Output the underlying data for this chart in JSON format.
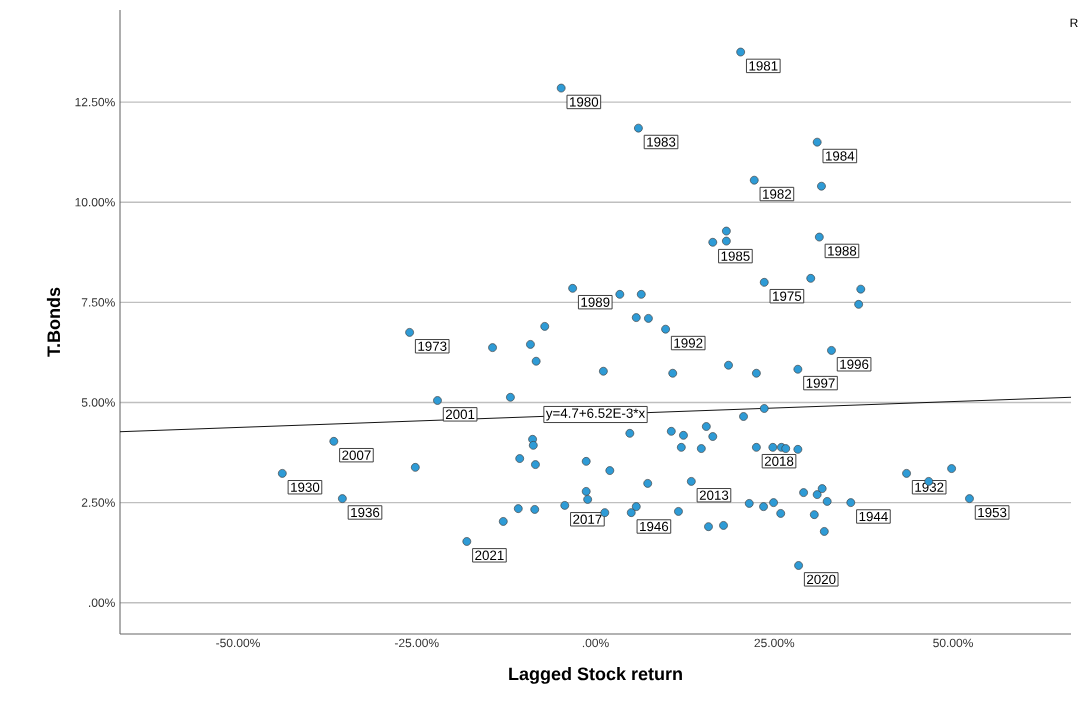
{
  "chart_data": {
    "type": "scatter",
    "xlabel": "Lagged Stock return",
    "ylabel": "T.Bonds",
    "xlim": [
      -66.5,
      66.5
    ],
    "ylim": [
      -0.78,
      14.8
    ],
    "xticks": [
      {
        "value": -50,
        "label": "-50.00%"
      },
      {
        "value": -25,
        "label": "-25.00%"
      },
      {
        "value": 0,
        "label": ".00%"
      },
      {
        "value": 25,
        "label": "25.00%"
      },
      {
        "value": 50,
        "label": "50.00%"
      }
    ],
    "yticks": [
      {
        "value": 0,
        "label": ".00%"
      },
      {
        "value": 2.5,
        "label": "2.50%"
      },
      {
        "value": 5,
        "label": "5.00%"
      },
      {
        "value": 7.5,
        "label": "7.50%"
      },
      {
        "value": 10,
        "label": "10.00%"
      },
      {
        "value": 12.5,
        "label": "12.50%"
      }
    ],
    "grid": "y",
    "series": [
      {
        "color": "#2e9bd6",
        "marker": "circle",
        "x": [
          -4.8,
          20.3,
          6.0,
          22.2,
          18.3,
          18.3,
          16.4,
          23.6,
          -3.2,
          3.4,
          6.4,
          5.7,
          7.4,
          -7.1,
          9.8,
          31.0,
          31.6,
          31.3,
          30.1,
          37.1,
          36.8,
          -14.4,
          -9.1,
          -8.3,
          1.1,
          10.8,
          18.6,
          22.5,
          -11.9,
          -22.1,
          23.6,
          20.7,
          4.8,
          10.6,
          12.3,
          15.5,
          16.4,
          -8.8,
          -8.7,
          12.0,
          14.8,
          22.5,
          -10.6,
          -8.4,
          -1.3,
          2.0,
          7.3,
          13.4,
          -1.3,
          -1.1,
          -10.8,
          -8.5,
          -4.3,
          5.7,
          5.0,
          1.3,
          11.6,
          21.5,
          23.5,
          -12.9,
          -18.0,
          15.8,
          17.9,
          33.0,
          28.3,
          24.8,
          26.0,
          26.6,
          28.3,
          29.1,
          31.0,
          31.7,
          32.4,
          35.7,
          24.9,
          25.9,
          30.6,
          32.0,
          28.4,
          43.5,
          46.6,
          49.8,
          52.3,
          -26.0,
          -36.6,
          -43.8,
          -35.4,
          -25.2
        ],
        "values": [
          12.85,
          13.75,
          11.85,
          10.55,
          9.28,
          9.03,
          9.0,
          8.0,
          7.85,
          7.7,
          7.7,
          7.12,
          7.1,
          6.9,
          6.83,
          11.5,
          10.4,
          9.13,
          8.1,
          7.83,
          7.45,
          6.37,
          6.45,
          6.03,
          5.78,
          5.73,
          5.93,
          5.73,
          5.13,
          5.05,
          4.85,
          4.65,
          4.23,
          4.28,
          4.18,
          4.4,
          4.15,
          4.08,
          3.93,
          3.88,
          3.85,
          3.88,
          3.6,
          3.45,
          3.53,
          3.3,
          2.98,
          3.03,
          2.78,
          2.58,
          2.35,
          2.33,
          2.43,
          2.4,
          2.25,
          2.25,
          2.28,
          2.48,
          2.4,
          2.03,
          1.53,
          1.9,
          1.93,
          6.3,
          5.83,
          3.88,
          3.88,
          3.85,
          3.83,
          2.75,
          2.7,
          2.85,
          2.53,
          2.5,
          2.5,
          2.23,
          2.2,
          1.78,
          0.93,
          3.23,
          3.03,
          3.35,
          2.6,
          6.75,
          4.03,
          3.23,
          2.6,
          3.38
        ]
      },
      {
        "type": "line",
        "marker": "none",
        "color": "#000000",
        "x": [
          -66.5,
          66.5
        ],
        "values": [
          4.27,
          5.13
        ]
      }
    ],
    "annotations": [
      {
        "text": "1980",
        "x": -4.8,
        "y": 12.85
      },
      {
        "text": "1981",
        "x": 20.3,
        "y": 13.75
      },
      {
        "text": "1983",
        "x": 6.0,
        "y": 11.85
      },
      {
        "text": "1984",
        "x": 31.0,
        "y": 11.5
      },
      {
        "text": "1982",
        "x": 22.2,
        "y": 10.55
      },
      {
        "text": "1985",
        "x": 16.4,
        "y": 9.0
      },
      {
        "text": "1988",
        "x": 31.3,
        "y": 9.13
      },
      {
        "text": "1975",
        "x": 23.6,
        "y": 8.0
      },
      {
        "text": "1989",
        "x": -3.2,
        "y": 7.85
      },
      {
        "text": "1973",
        "x": -26.0,
        "y": 6.75
      },
      {
        "text": "1992",
        "x": 9.8,
        "y": 6.83
      },
      {
        "text": "1996",
        "x": 33.0,
        "y": 6.3
      },
      {
        "text": "1997",
        "x": 28.3,
        "y": 5.83
      },
      {
        "text": "2007",
        "x": -36.6,
        "y": 4.03
      },
      {
        "text": "2001",
        "x": -22.1,
        "y": 5.05
      },
      {
        "text": "y=4.7+6.52E-3*x",
        "x": 0,
        "y": 4.7
      },
      {
        "text": "1932",
        "x": 43.5,
        "y": 3.23
      },
      {
        "text": "2018",
        "x": 22.5,
        "y": 3.88
      },
      {
        "text": "1930",
        "x": -43.8,
        "y": 3.23
      },
      {
        "text": "2013",
        "x": 13.4,
        "y": 3.03
      },
      {
        "text": "1936",
        "x": -35.4,
        "y": 2.6
      },
      {
        "text": "2017",
        "x": -4.3,
        "y": 2.43
      },
      {
        "text": "1946",
        "x": 5.0,
        "y": 2.25
      },
      {
        "text": "1944",
        "x": 35.7,
        "y": 2.5
      },
      {
        "text": "1953",
        "x": 52.3,
        "y": 2.6
      },
      {
        "text": "2021",
        "x": -18.0,
        "y": 1.53
      },
      {
        "text": "2020",
        "x": 28.4,
        "y": 0.93
      },
      "R"
    ]
  }
}
